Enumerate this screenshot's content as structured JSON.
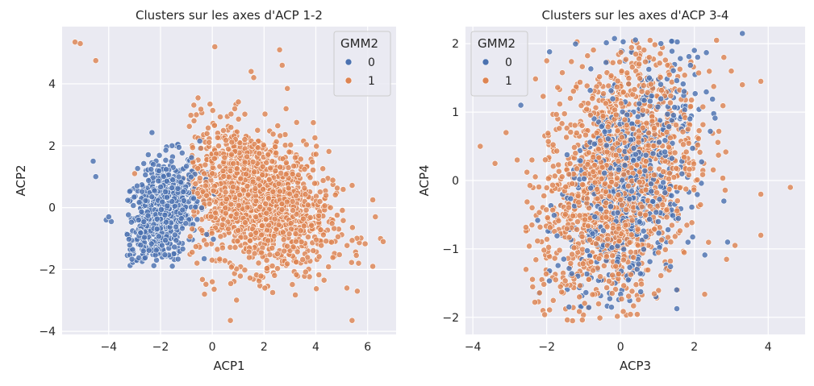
{
  "colors": {
    "background": "#eaeaf2",
    "grid": "#ffffff",
    "cluster_0": "#4c72b0",
    "cluster_1": "#dd8452"
  },
  "chart_data": [
    {
      "type": "scatter",
      "title": "Clusters sur les axes d'ACP 1-2",
      "xlabel": "ACP1",
      "ylabel": "ACP2",
      "xlim": [
        -5.8,
        7.1
      ],
      "ylim": [
        -4.1,
        5.85
      ],
      "xticks": [
        -4,
        -2,
        0,
        2,
        4,
        6
      ],
      "yticks": [
        -4,
        -2,
        0,
        2,
        4
      ],
      "xtick_labels": [
        "−4",
        "−2",
        "0",
        "2",
        "4",
        "6"
      ],
      "ytick_labels": [
        "−4",
        "−2",
        "0",
        "2",
        "4"
      ],
      "grid": true,
      "legend": {
        "title": "GMM2",
        "placement": "top-right",
        "entries": [
          "0",
          "1"
        ]
      },
      "series": [
        {
          "name": "0",
          "n": 650,
          "cloud": {
            "x_center": -2.0,
            "x_sd": 0.75,
            "y_center": -0.2,
            "y_sd": 0.9,
            "corr": 0.35,
            "x_range": [
              -3.3,
              0.3
            ],
            "y_range": [
              -1.9,
              2.6
            ]
          },
          "points": [
            [
              -4.6,
              1.5
            ],
            [
              -4.5,
              1.0
            ],
            [
              -4.1,
              -0.4
            ],
            [
              -4.0,
              -0.3
            ],
            [
              -3.9,
              -0.45
            ],
            [
              -3.2,
              -0.9
            ],
            [
              -3.3,
              -0.85
            ]
          ]
        },
        {
          "name": "1",
          "n": 1400,
          "cloud": {
            "x_center": 1.6,
            "x_sd": 1.45,
            "y_center": 0.3,
            "y_sd": 1.15,
            "corr": -0.3,
            "x_range": [
              -0.9,
              6.6
            ],
            "y_range": [
              -3.0,
              4.6
            ]
          },
          "points": [
            [
              -5.3,
              5.35
            ],
            [
              -5.1,
              5.3
            ],
            [
              -4.5,
              4.75
            ],
            [
              0.7,
              -3.65
            ],
            [
              5.4,
              -3.65
            ],
            [
              -0.3,
              -2.8
            ],
            [
              0.0,
              -2.4
            ],
            [
              0.1,
              5.2
            ],
            [
              2.6,
              5.1
            ],
            [
              2.7,
              4.6
            ],
            [
              2.9,
              3.85
            ],
            [
              1.5,
              4.4
            ],
            [
              1.6,
              4.2
            ],
            [
              6.2,
              0.25
            ],
            [
              6.3,
              -0.3
            ],
            [
              6.5,
              -1.0
            ],
            [
              6.6,
              -1.1
            ],
            [
              6.2,
              -1.9
            ],
            [
              5.6,
              -2.7
            ],
            [
              5.2,
              -2.6
            ],
            [
              -1.1,
              0.95
            ],
            [
              -3.0,
              1.1
            ]
          ]
        }
      ]
    },
    {
      "type": "scatter",
      "title": "Clusters sur les axes d'ACP 3-4",
      "xlabel": "ACP3",
      "ylabel": "ACP4",
      "xlim": [
        -4.2,
        5.0
      ],
      "ylim": [
        -2.25,
        2.25
      ],
      "xticks": [
        -4,
        -2,
        0,
        2,
        4
      ],
      "yticks": [
        -2,
        -1,
        0,
        1,
        2
      ],
      "xtick_labels": [
        "−4",
        "−2",
        "0",
        "2",
        "4"
      ],
      "ytick_labels": [
        "−2",
        "−1",
        "0",
        "1",
        "2"
      ],
      "grid": true,
      "legend": {
        "title": "GMM2",
        "placement": "top-left",
        "entries": [
          "0",
          "1"
        ]
      },
      "series": [
        {
          "name": "0",
          "n": 650,
          "cloud": {
            "x_center": 0.2,
            "x_sd": 0.9,
            "y_center": 0.0,
            "y_sd": 0.95,
            "corr": 0.4,
            "x_range": [
              -2.3,
              2.6
            ],
            "y_range": [
              -1.9,
              2.1
            ]
          },
          "points": [
            [
              3.3,
              2.15
            ],
            [
              2.9,
              -0.9
            ],
            [
              2.8,
              -0.3
            ],
            [
              -2.7,
              1.1
            ]
          ]
        },
        {
          "name": "1",
          "n": 1400,
          "cloud": {
            "x_center": -0.1,
            "x_sd": 1.05,
            "y_center": 0.0,
            "y_sd": 0.95,
            "corr": 0.3,
            "x_range": [
              -2.6,
              2.9
            ],
            "y_range": [
              -2.05,
              2.05
            ]
          },
          "points": [
            [
              -3.8,
              0.5
            ],
            [
              -3.4,
              0.25
            ],
            [
              -3.1,
              0.7
            ],
            [
              -2.8,
              0.3
            ],
            [
              -2.4,
              0.3
            ],
            [
              3.8,
              1.45
            ],
            [
              3.8,
              -0.2
            ],
            [
              3.8,
              -0.8
            ],
            [
              4.6,
              -0.1
            ],
            [
              3.0,
              1.6
            ],
            [
              3.3,
              1.4
            ],
            [
              2.8,
              1.8
            ],
            [
              2.6,
              2.05
            ],
            [
              3.1,
              -0.95
            ],
            [
              -2.0,
              1.75
            ],
            [
              -2.1,
              -1.9
            ],
            [
              -2.4,
              -0.65
            ],
            [
              -1.3,
              -2.05
            ],
            [
              0.8,
              2.05
            ]
          ]
        }
      ]
    }
  ]
}
